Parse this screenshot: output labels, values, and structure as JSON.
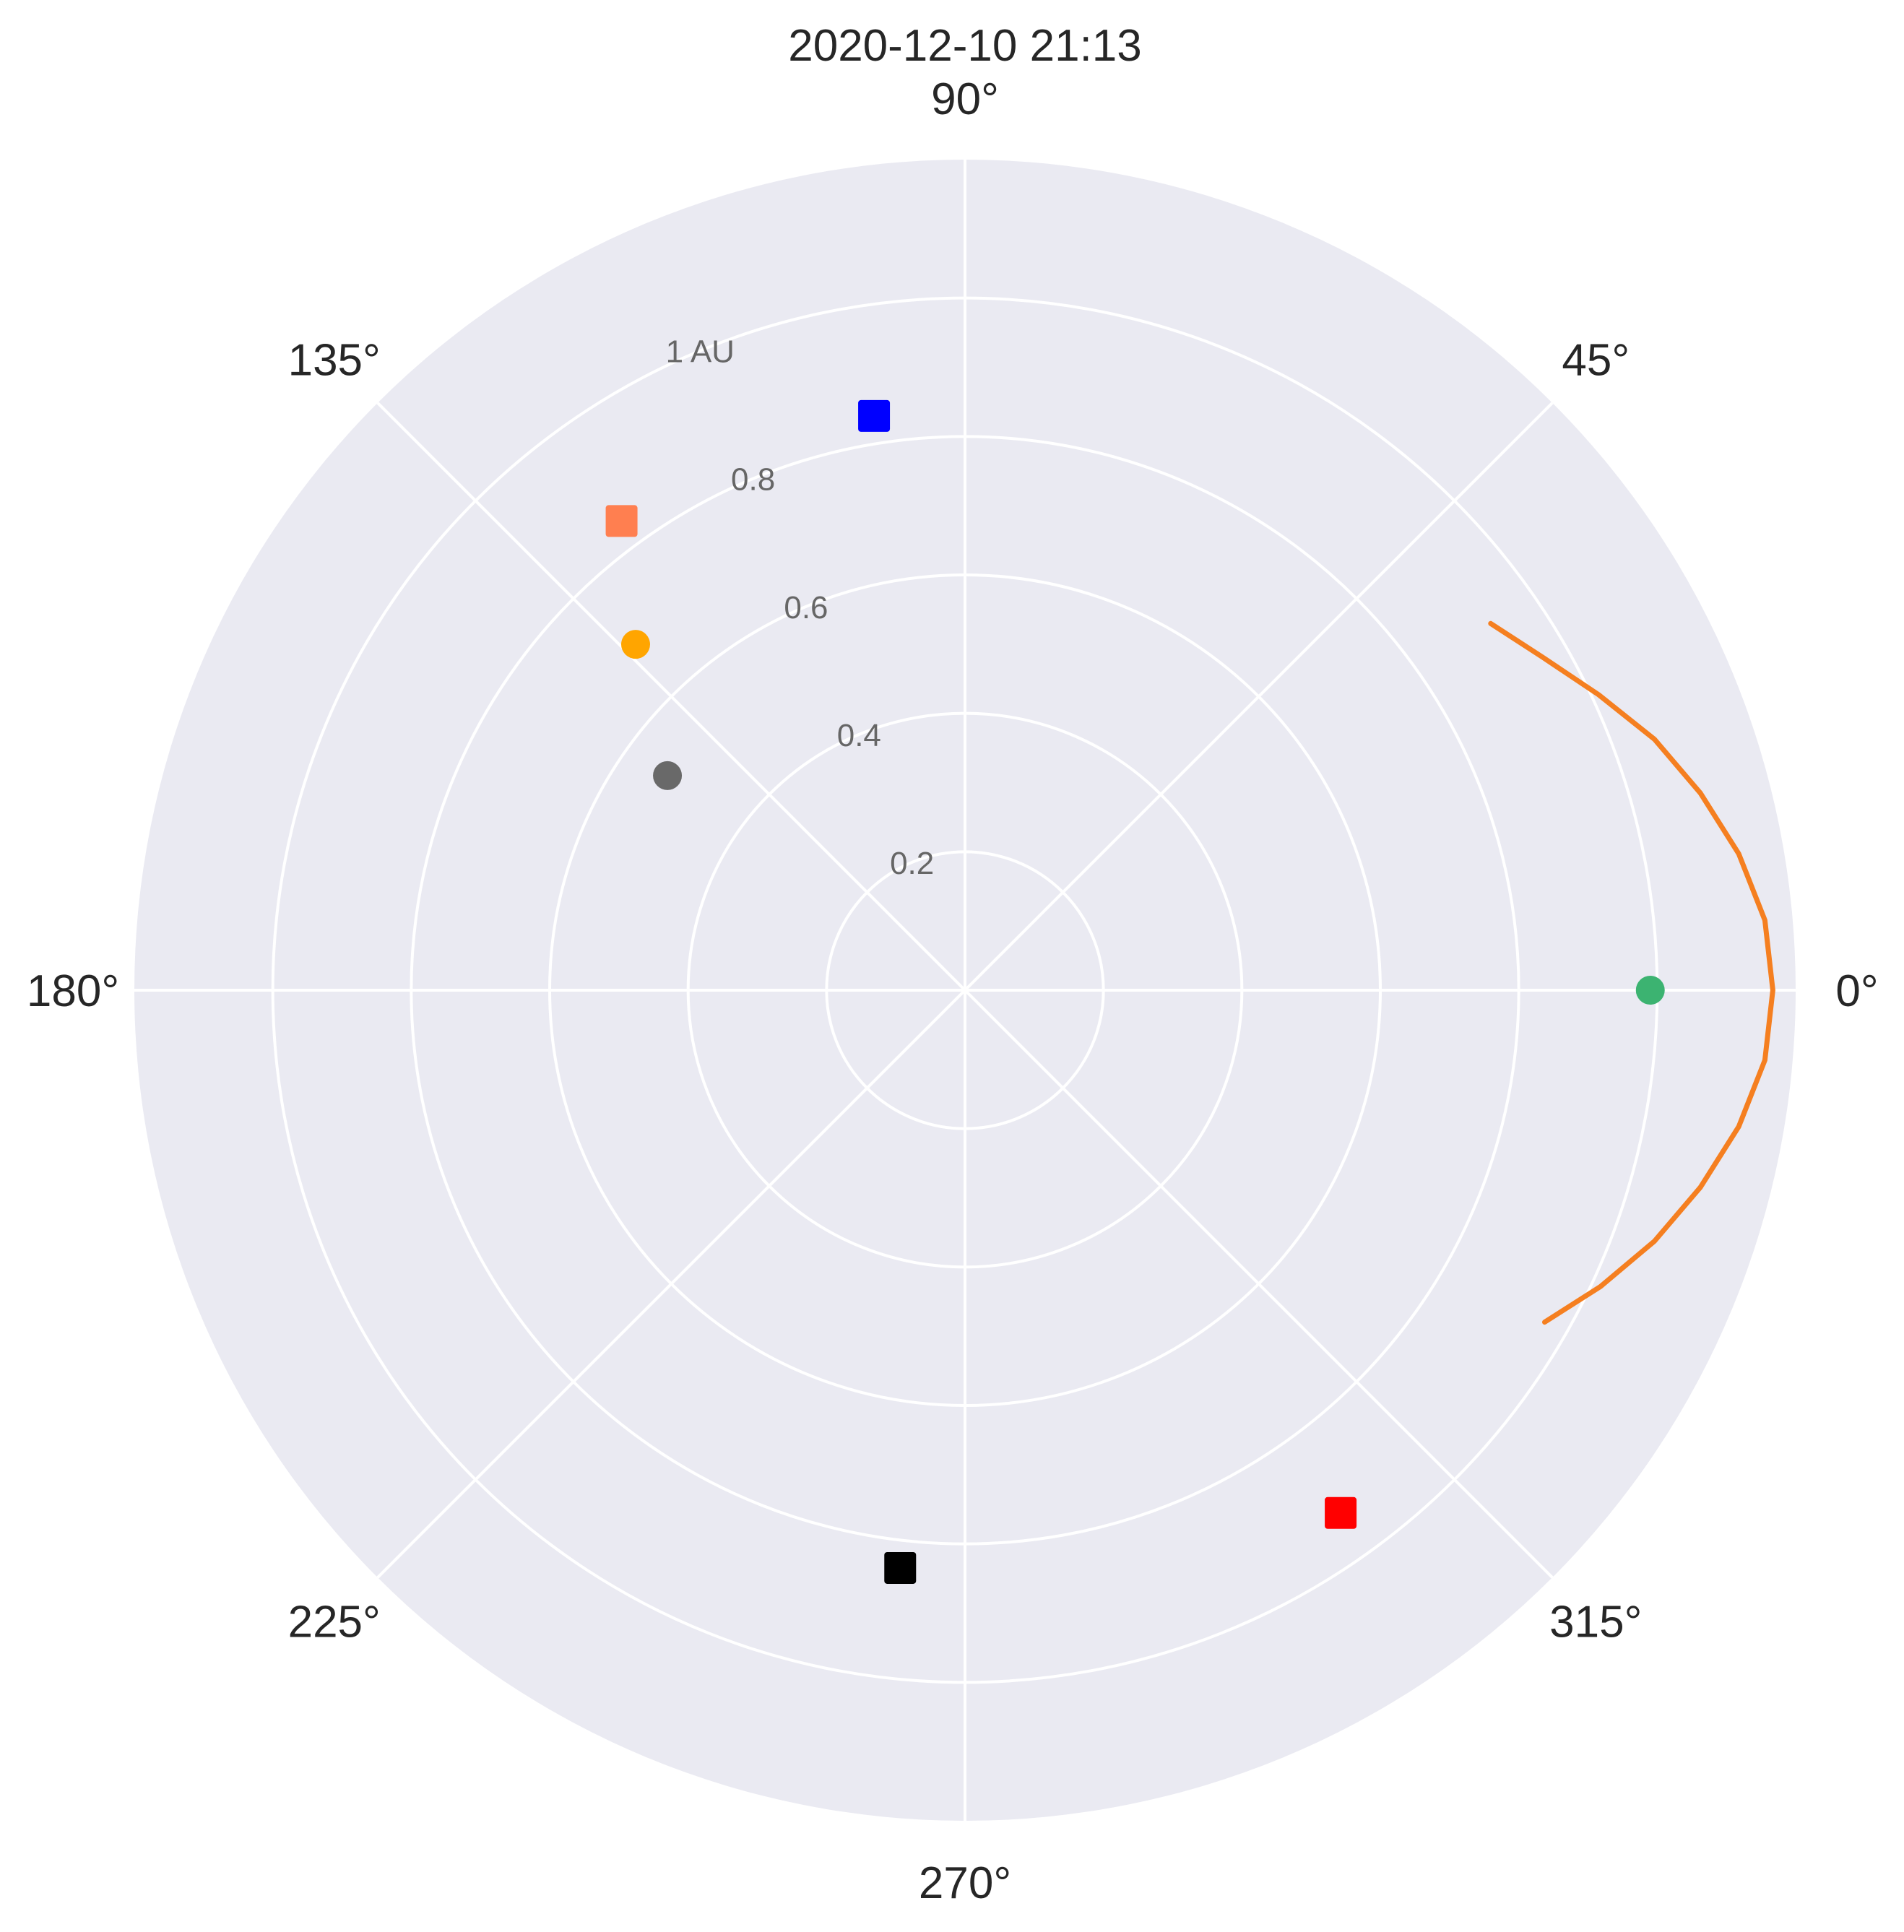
{
  "colors": {
    "background": "#eaeaf2",
    "grid": "#ffffff",
    "text": "#262626",
    "radial_text": "#666666"
  },
  "chart_data": {
    "type": "scatter",
    "projection": "polar",
    "title": "2020-12-10 21:13",
    "theta_unit": "degrees",
    "r_unit": "AU",
    "theta_ticks": [
      0,
      45,
      90,
      135,
      180,
      225,
      270,
      315
    ],
    "theta_tick_labels": [
      "0°",
      "45°",
      "90°",
      "135°",
      "180°",
      "225°",
      "270°",
      "315°"
    ],
    "r_ticks": [
      0.2,
      0.4,
      0.6,
      0.8,
      1.0
    ],
    "r_tick_labels": [
      "0.2",
      "0.4",
      "0.6",
      "0.8",
      "1 AU"
    ],
    "r_label_angle_deg": 112.5,
    "rlim": [
      0,
      1.2
    ],
    "grid": true,
    "points": [
      {
        "theta_deg": 99.0,
        "r": 0.84,
        "marker": "square",
        "color": "#0000ff"
      },
      {
        "theta_deg": 133.6,
        "r": 0.69,
        "marker": "circle",
        "color": "#ffa500"
      },
      {
        "theta_deg": 126.2,
        "r": 0.84,
        "marker": "square",
        "color": "#ff7f50"
      },
      {
        "theta_deg": 144.2,
        "r": 0.53,
        "marker": "circle",
        "color": "#696969"
      },
      {
        "theta_deg": 0.0,
        "r": 0.99,
        "marker": "circle",
        "color": "#3cb371"
      },
      {
        "theta_deg": 263.6,
        "r": 0.84,
        "marker": "square",
        "color": "#000000"
      },
      {
        "theta_deg": 305.7,
        "r": 0.93,
        "marker": "square",
        "color": "#ff0000"
      }
    ],
    "series": [
      {
        "type": "line",
        "color": "#f57f20",
        "theta_deg": [
          -29.8,
          -25,
          -20,
          -15,
          -10,
          -5,
          0,
          5,
          10,
          15,
          20,
          25,
          30,
          34.9
        ],
        "r": [
          0.965,
          1.013,
          1.06,
          1.1,
          1.135,
          1.16,
          1.167,
          1.16,
          1.135,
          1.1,
          1.06,
          1.01,
          0.963,
          0.926
        ]
      }
    ]
  }
}
